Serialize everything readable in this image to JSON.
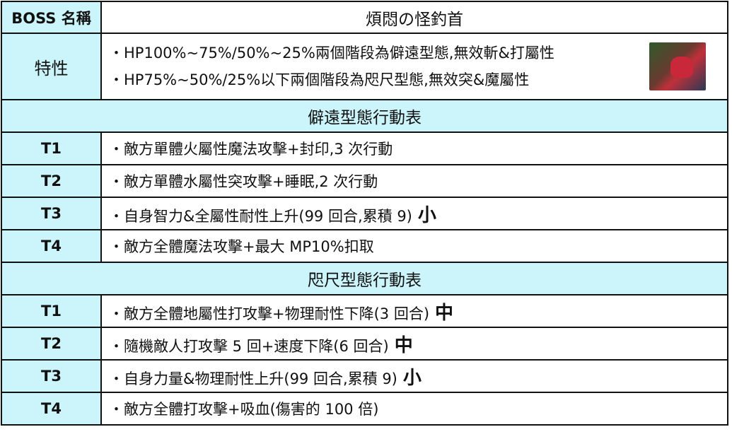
{
  "header": {
    "label": "BOSS 名稱",
    "boss_name": "煩悶の怪釣首"
  },
  "traits": {
    "label": "特性",
    "items": [
      "・HP100%~75%/50%~25%兩個階段為僻遠型態,無效斬&打屬性",
      "・HP75%~50%/25%以下兩個階段為咫尺型態,無效突&魔屬性"
    ]
  },
  "sections": [
    {
      "title": "僻遠型態行動表",
      "rows": [
        {
          "turn": "T1",
          "action": "・敵方單體火屬性魔法攻擊+封印,3 次行動",
          "mark": ""
        },
        {
          "turn": "T2",
          "action": "・敵方單體水屬性突攻擊+睡眠,2 次行動",
          "mark": ""
        },
        {
          "turn": "T3",
          "action": "・自身智力&全屬性耐性上升(99 回合,累積 9)",
          "mark": "小"
        },
        {
          "turn": "T4",
          "action": "・敵方全體魔法攻擊+最大 MP10%扣取",
          "mark": ""
        }
      ]
    },
    {
      "title": "咫尺型態行動表",
      "rows": [
        {
          "turn": "T1",
          "action": "・敵方全體地屬性打攻擊+物理耐性下降(3 回合)",
          "mark": "中"
        },
        {
          "turn": "T2",
          "action": "・隨機敵人打攻擊 5 回+速度下降(6 回合)",
          "mark": "中"
        },
        {
          "turn": "T3",
          "action": "・自身力量&物理耐性上升(99 回合,累積 9)",
          "mark": "小"
        },
        {
          "turn": "T4",
          "action": "・敵方全體打攻擊+吸血(傷害的 100 倍)",
          "mark": ""
        }
      ]
    }
  ]
}
